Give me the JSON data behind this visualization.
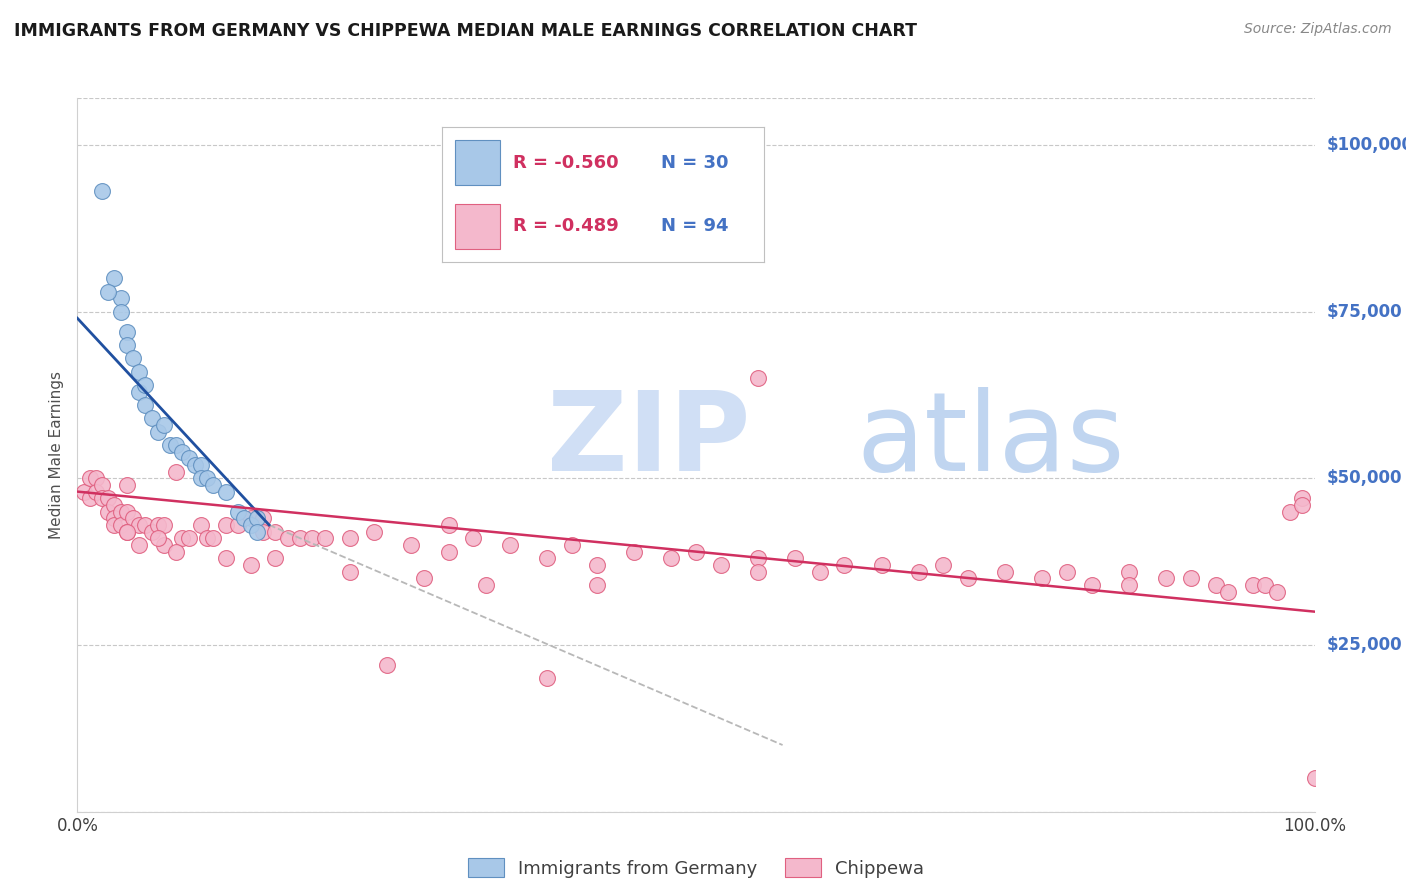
{
  "title": "IMMIGRANTS FROM GERMANY VS CHIPPEWA MEDIAN MALE EARNINGS CORRELATION CHART",
  "source": "Source: ZipAtlas.com",
  "ylabel": "Median Male Earnings",
  "legend_blue_r": "R = -0.560",
  "legend_blue_n": "N = 30",
  "legend_pink_r": "R = -0.489",
  "legend_pink_n": "N = 94",
  "yticks": [
    0,
    25000,
    50000,
    75000,
    100000
  ],
  "ytick_labels": [
    "",
    "$25,000",
    "$50,000",
    "$75,000",
    "$100,000"
  ],
  "xlim": [
    0.0,
    1.0
  ],
  "ylim": [
    0,
    107000
  ],
  "blue_color": "#a8c8e8",
  "pink_color": "#f4b8cc",
  "blue_edge_color": "#6090c0",
  "pink_edge_color": "#e06080",
  "blue_line_color": "#2050a0",
  "pink_line_color": "#d03060",
  "dash_line_color": "#b8b8b8",
  "grid_color": "#c8c8c8",
  "title_color": "#1a1a1a",
  "axis_label_color": "#404040",
  "right_tick_color": "#4472c4",
  "watermark_zip_color": "#d0dff5",
  "watermark_atlas_color": "#c0d5f0",
  "blue_x": [
    0.02,
    0.03,
    0.035,
    0.035,
    0.04,
    0.04,
    0.045,
    0.05,
    0.05,
    0.055,
    0.055,
    0.06,
    0.065,
    0.07,
    0.075,
    0.08,
    0.085,
    0.09,
    0.095,
    0.1,
    0.1,
    0.105,
    0.11,
    0.12,
    0.13,
    0.135,
    0.14,
    0.145,
    0.145,
    0.025
  ],
  "blue_y": [
    93000,
    80000,
    77000,
    75000,
    72000,
    70000,
    68000,
    66000,
    63000,
    64000,
    61000,
    59000,
    57000,
    58000,
    55000,
    55000,
    54000,
    53000,
    52000,
    52000,
    50000,
    50000,
    49000,
    48000,
    45000,
    44000,
    43000,
    44000,
    42000,
    78000
  ],
  "pink_x": [
    0.005,
    0.01,
    0.01,
    0.015,
    0.015,
    0.02,
    0.02,
    0.025,
    0.025,
    0.03,
    0.03,
    0.03,
    0.035,
    0.035,
    0.04,
    0.04,
    0.04,
    0.045,
    0.05,
    0.05,
    0.055,
    0.06,
    0.065,
    0.07,
    0.07,
    0.08,
    0.085,
    0.09,
    0.1,
    0.105,
    0.11,
    0.12,
    0.13,
    0.14,
    0.15,
    0.15,
    0.16,
    0.17,
    0.18,
    0.19,
    0.2,
    0.22,
    0.24,
    0.27,
    0.3,
    0.3,
    0.32,
    0.35,
    0.38,
    0.4,
    0.42,
    0.45,
    0.48,
    0.5,
    0.52,
    0.55,
    0.55,
    0.58,
    0.6,
    0.62,
    0.65,
    0.68,
    0.7,
    0.72,
    0.75,
    0.78,
    0.8,
    0.82,
    0.85,
    0.85,
    0.88,
    0.9,
    0.92,
    0.93,
    0.95,
    0.96,
    0.97,
    0.98,
    0.99,
    0.99,
    0.25,
    0.38,
    0.55,
    1.0,
    0.04,
    0.065,
    0.08,
    0.12,
    0.14,
    0.16,
    0.22,
    0.28,
    0.33,
    0.42
  ],
  "pink_y": [
    48000,
    50000,
    47000,
    50000,
    48000,
    49000,
    47000,
    47000,
    45000,
    46000,
    44000,
    43000,
    45000,
    43000,
    49000,
    45000,
    42000,
    44000,
    43000,
    40000,
    43000,
    42000,
    43000,
    43000,
    40000,
    51000,
    41000,
    41000,
    43000,
    41000,
    41000,
    43000,
    43000,
    44000,
    44000,
    42000,
    42000,
    41000,
    41000,
    41000,
    41000,
    41000,
    42000,
    40000,
    43000,
    39000,
    41000,
    40000,
    38000,
    40000,
    37000,
    39000,
    38000,
    39000,
    37000,
    38000,
    36000,
    38000,
    36000,
    37000,
    37000,
    36000,
    37000,
    35000,
    36000,
    35000,
    36000,
    34000,
    36000,
    34000,
    35000,
    35000,
    34000,
    33000,
    34000,
    34000,
    33000,
    45000,
    47000,
    46000,
    22000,
    20000,
    65000,
    5000,
    42000,
    41000,
    39000,
    38000,
    37000,
    38000,
    36000,
    35000,
    34000,
    34000
  ],
  "blue_trend_x": [
    0.0,
    0.155
  ],
  "blue_trend_y": [
    74000,
    43000
  ],
  "pink_trend_x": [
    0.0,
    1.0
  ],
  "pink_trend_y": [
    48000,
    30000
  ],
  "dash_trend_x": [
    0.155,
    0.57
  ],
  "dash_trend_y": [
    43000,
    10000
  ]
}
